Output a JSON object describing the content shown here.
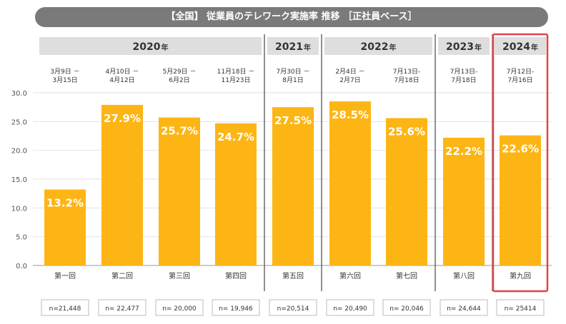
{
  "title": "【全国】 従業員のテレワーク実施率 推移 ［正社員ベース］",
  "nen_suffix": "年",
  "year_groups": [
    {
      "year": "2020",
      "from": 0,
      "to": 3
    },
    {
      "year": "2021",
      "from": 4,
      "to": 4
    },
    {
      "year": "2022",
      "from": 5,
      "to": 6
    },
    {
      "year": "2023",
      "from": 7,
      "to": 7
    },
    {
      "year": "2024",
      "from": 8,
      "to": 8,
      "highlight": true
    }
  ],
  "chart_data": {
    "type": "bar",
    "categories": [
      "第一回",
      "第二回",
      "第三回",
      "第四回",
      "第五回",
      "第六回",
      "第七回",
      "第八回",
      "第九回"
    ],
    "values": [
      13.2,
      27.9,
      25.7,
      24.7,
      27.5,
      28.5,
      25.6,
      22.2,
      22.6
    ],
    "value_labels": [
      "13.2%",
      "27.9%",
      "25.7%",
      "24.7%",
      "27.5%",
      "28.5%",
      "25.6%",
      "22.2%",
      "22.6%"
    ],
    "periods": [
      [
        "3月9日 －",
        "3月15日"
      ],
      [
        "4月10日 －",
        "4月12日"
      ],
      [
        "5月29日 －",
        "6月2日"
      ],
      [
        "11月18日 －",
        "11月23日"
      ],
      [
        "7月30日 －",
        "8月1日"
      ],
      [
        "2月4日 －",
        "2月7日"
      ],
      [
        "7月13日-",
        "7月18日"
      ],
      [
        "7月13日-",
        "7月18日"
      ],
      [
        "7月12日-",
        "7月16日"
      ]
    ],
    "sample_sizes": [
      "n=21,448",
      "n= 22,477",
      "n= 20,000",
      "n= 19,946",
      "n=20,514",
      "n= 20,490",
      "n= 20,046",
      "n= 24,644",
      "n= 25414"
    ],
    "yticks": [
      "0.0",
      "5.0",
      "10.0",
      "15.0",
      "20.0",
      "25.0",
      "30.0"
    ],
    "ylim": [
      0,
      30
    ],
    "grid": true,
    "bar_color": "#FDB515",
    "highlight_color": "#E0454B"
  }
}
